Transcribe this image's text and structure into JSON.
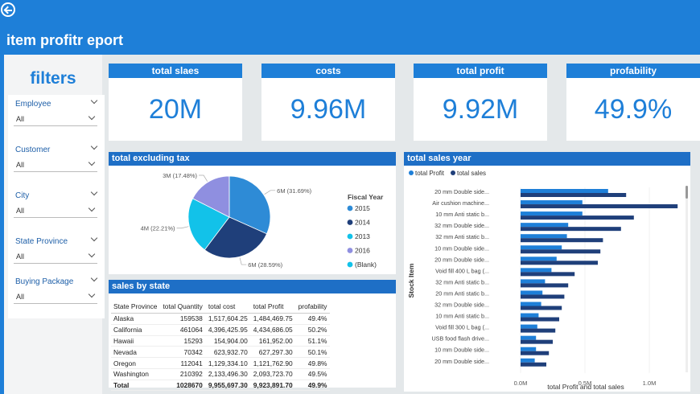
{
  "header": {
    "title": "item profitr eport"
  },
  "sidebar": {
    "title": "filters",
    "slicers": [
      {
        "label": "Employee",
        "value": "All"
      },
      {
        "label": "Customer",
        "value": "All"
      },
      {
        "label": "City",
        "value": "All"
      },
      {
        "label": "State Province",
        "value": "All"
      },
      {
        "label": "Buying Package",
        "value": "All"
      }
    ]
  },
  "kpis": [
    {
      "label": "total slaes",
      "value": "20M"
    },
    {
      "label": "costs",
      "value": "9.96M"
    },
    {
      "label": "total profit",
      "value": "9.92M"
    },
    {
      "label": "profability",
      "value": "49.9%"
    }
  ],
  "colors": {
    "accent": "#1e7fd8",
    "navy": "#1f3f7a",
    "light_blue": "#2e8bd6",
    "cyan": "#12c2e9",
    "lavender": "#8f8fe0"
  },
  "chart_data": [
    {
      "type": "pie",
      "title": "total excluding tax",
      "legend_title": "Fiscal Year",
      "legend_position": "right",
      "slices": [
        {
          "name": "2015",
          "value": 6,
          "label": "6M (31.69%)",
          "percent": 31.69,
          "color": "#2e8bd6"
        },
        {
          "name": "2014",
          "value": 6,
          "label": "6M (28.59%)",
          "percent": 28.59,
          "color": "#1f3f7a"
        },
        {
          "name": "2013",
          "value": 4,
          "label": "4M (22.21%)",
          "percent": 22.21,
          "color": "#12c2e9"
        },
        {
          "name": "2016",
          "value": 3,
          "label": "3M (17.48%)",
          "percent": 17.48,
          "color": "#8f8fe0"
        },
        {
          "name": "(Blank)",
          "value": 0,
          "label": "",
          "percent": 0,
          "color": "#12c2e9"
        }
      ]
    },
    {
      "type": "bar",
      "orientation": "horizontal",
      "title": "total sales year",
      "xlabel": "total Profit and total sales",
      "ylabel": "Stock Item",
      "xlim": [
        0,
        1.3
      ],
      "xticks": [
        "0.0M",
        "0.5M",
        "1.0M"
      ],
      "legend_position": "top-left",
      "categories": [
        "20 mm Double side...",
        "Air cushion machine...",
        "10 mm Anti static b...",
        "32 mm Double side...",
        "32 mm Anti static b...",
        "10 mm Double side...",
        "20 mm Double side...",
        "Void fill 400 L bag (...",
        "32 mm Anti static b...",
        "20 mm Anti static b...",
        "32 mm Double side...",
        "10 mm Anti static b...",
        "Void fill 300 L bag (...",
        "USB food flash drive...",
        "10 mm Double side...",
        "20 mm Double side..."
      ],
      "series": [
        {
          "name": "total  Profit",
          "color": "#1e7fd8",
          "values": [
            0.68,
            0.48,
            0.48,
            0.37,
            0.36,
            0.32,
            0.28,
            0.24,
            0.19,
            0.17,
            0.16,
            0.14,
            0.13,
            0.12,
            0.12,
            0.11
          ]
        },
        {
          "name": "total sales",
          "color": "#1f3f7a",
          "values": [
            0.82,
            1.22,
            0.88,
            0.78,
            0.64,
            0.62,
            0.6,
            0.42,
            0.37,
            0.34,
            0.32,
            0.3,
            0.27,
            0.25,
            0.22,
            0.2
          ]
        }
      ]
    }
  ],
  "sales_table": {
    "title": "sales by state",
    "columns": [
      "State Province",
      "total Quantity",
      "total cost",
      "total Profit",
      "profability"
    ],
    "rows": [
      [
        "Alaska",
        "159538",
        "1,517,604.25",
        "1,484,469.75",
        "49.4%"
      ],
      [
        "California",
        "461064",
        "4,396,425.95",
        "4,434,686.05",
        "50.2%"
      ],
      [
        "Hawaii",
        "15293",
        "154,904.00",
        "161,952.00",
        "51.1%"
      ],
      [
        "Nevada",
        "70342",
        "623,932.70",
        "627,297.30",
        "50.1%"
      ],
      [
        "Oregon",
        "112041",
        "1,129,334.10",
        "1,121,762.90",
        "49.8%"
      ],
      [
        "Washington",
        "210392",
        "2,133,496.30",
        "2,093,723.70",
        "49.5%"
      ]
    ],
    "total": [
      "Total",
      "1028670",
      "9,955,697.30",
      "9,923,891.70",
      "49.9%"
    ]
  }
}
